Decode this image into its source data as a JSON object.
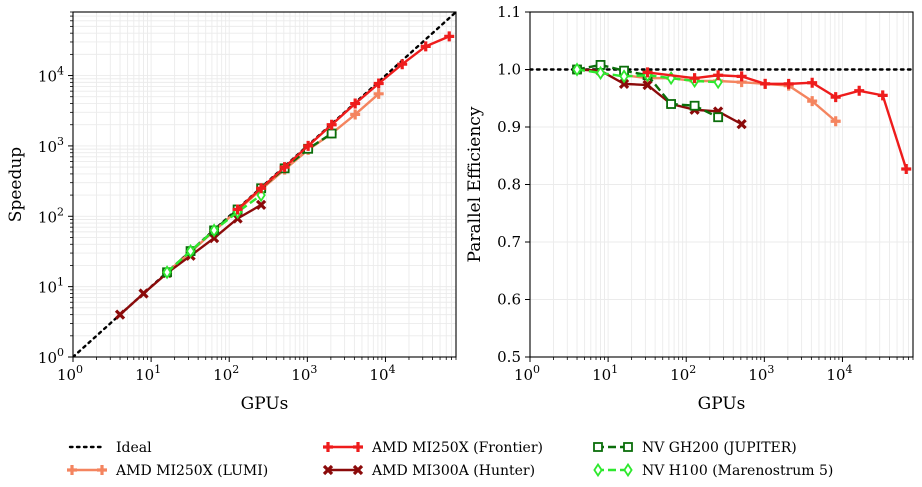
{
  "chart_data": [
    {
      "type": "line",
      "xlabel": "GPUs",
      "ylabel": "Speedup",
      "xscale": "log",
      "yscale": "log",
      "xlim": [
        1,
        80000
      ],
      "ylim": [
        1,
        80000
      ],
      "xticks": [
        1,
        10,
        100,
        1000,
        10000
      ],
      "yticks": [
        1,
        10,
        100,
        1000,
        10000
      ],
      "grid": true,
      "series": [
        {
          "name": "Ideal",
          "color": "#000000",
          "dash": "dotted",
          "marker": "none",
          "x": [
            1,
            80000
          ],
          "y": [
            1,
            80000
          ]
        },
        {
          "name": "AMD MI250X (LUMI)",
          "color": "#f4845f",
          "marker": "plus",
          "x": [
            16,
            32,
            64,
            128,
            256,
            512,
            1024,
            2048,
            4096,
            8192
          ],
          "y": [
            16,
            31,
            62,
            122,
            240,
            460,
            880,
            1500,
            2800,
            5500
          ]
        },
        {
          "name": "AMD MI250X (Frontier)",
          "color": "#ee1c1c",
          "marker": "plus",
          "x": [
            128,
            256,
            512,
            1024,
            2048,
            4096,
            8192,
            16384,
            32768,
            65536
          ],
          "y": [
            125,
            250,
            500,
            1000,
            2000,
            4000,
            7700,
            14500,
            26000,
            36000
          ]
        },
        {
          "name": "AMD MI300A (Hunter)",
          "color": "#8b0a0a",
          "marker": "x",
          "x": [
            4,
            8,
            16,
            32,
            64,
            128,
            256
          ],
          "y": [
            4,
            8,
            15.6,
            27.5,
            49,
            93,
            145
          ]
        },
        {
          "name": "NV GH200 (JUPITER)",
          "color": "#0b6e0b",
          "marker": "square",
          "dash": "dashed",
          "x": [
            16,
            32,
            64,
            128,
            256,
            512,
            1024,
            2048
          ],
          "y": [
            16,
            32,
            63,
            125,
            250,
            480,
            910,
            1500
          ]
        },
        {
          "name": "NV H100 (Marenostrum 5)",
          "color": "#2ee82e",
          "marker": "diamond",
          "dash": "dashed",
          "x": [
            16,
            32,
            64,
            128,
            256
          ],
          "y": [
            16,
            32,
            63,
            115,
            200
          ]
        }
      ]
    },
    {
      "type": "line",
      "xlabel": "GPUs",
      "ylabel": "Parallel Efficiency",
      "xscale": "log",
      "yscale": "linear",
      "xlim": [
        1,
        80000
      ],
      "ylim": [
        0.5,
        1.1
      ],
      "xticks": [
        1,
        10,
        100,
        1000,
        10000
      ],
      "yticks": [
        0.5,
        0.6,
        0.7,
        0.8,
        0.9,
        1.0,
        1.1
      ],
      "grid": true,
      "series": [
        {
          "name": "Ideal",
          "color": "#000000",
          "dash": "dotted",
          "marker": "none",
          "x": [
            1,
            80000
          ],
          "y": [
            1.0,
            1.0
          ]
        },
        {
          "name": "AMD MI250X (LUMI)",
          "color": "#f4845f",
          "marker": "plus",
          "x": [
            16,
            32,
            64,
            128,
            256,
            512,
            1024,
            2048,
            4096,
            8192
          ],
          "y": [
            0.99,
            0.985,
            0.985,
            0.98,
            0.98,
            0.978,
            0.975,
            0.972,
            0.945,
            0.91
          ]
        },
        {
          "name": "AMD MI250X (Frontier)",
          "color": "#ee1c1c",
          "marker": "plus",
          "x": [
            32,
            128,
            256,
            512,
            1024,
            2048,
            4096,
            8192,
            16384,
            32768,
            65536
          ],
          "y": [
            0.995,
            0.985,
            0.99,
            0.988,
            0.975,
            0.975,
            0.977,
            0.952,
            0.963,
            0.955,
            0.827
          ]
        },
        {
          "name": "AMD MI300A (Hunter)",
          "color": "#8b0a0a",
          "marker": "x",
          "x": [
            4,
            8,
            16,
            32,
            64,
            128,
            256,
            512
          ],
          "y": [
            1.0,
            0.998,
            0.975,
            0.973,
            0.94,
            0.93,
            0.927,
            0.905
          ]
        },
        {
          "name": "NV GH200 (JUPITER)",
          "color": "#0b6e0b",
          "marker": "square",
          "dash": "dashed",
          "x": [
            4,
            8,
            16,
            32,
            64,
            128,
            256
          ],
          "y": [
            1.0,
            1.008,
            0.998,
            0.99,
            0.94,
            0.937,
            0.917
          ]
        },
        {
          "name": "NV H100 (Marenostrum 5)",
          "color": "#2ee82e",
          "marker": "diamond",
          "dash": "dashed",
          "x": [
            4,
            8,
            16,
            32,
            64,
            128,
            256
          ],
          "y": [
            1.0,
            0.994,
            0.988,
            0.99,
            0.985,
            0.98,
            0.978
          ]
        }
      ]
    }
  ],
  "legend": {
    "placement": "bottom",
    "entries": [
      "Ideal",
      "AMD MI250X (LUMI)",
      "AMD MI250X (Frontier)",
      "AMD MI300A (Hunter)",
      "NV GH200 (JUPITER)",
      "NV H100 (Marenostrum 5)"
    ]
  }
}
